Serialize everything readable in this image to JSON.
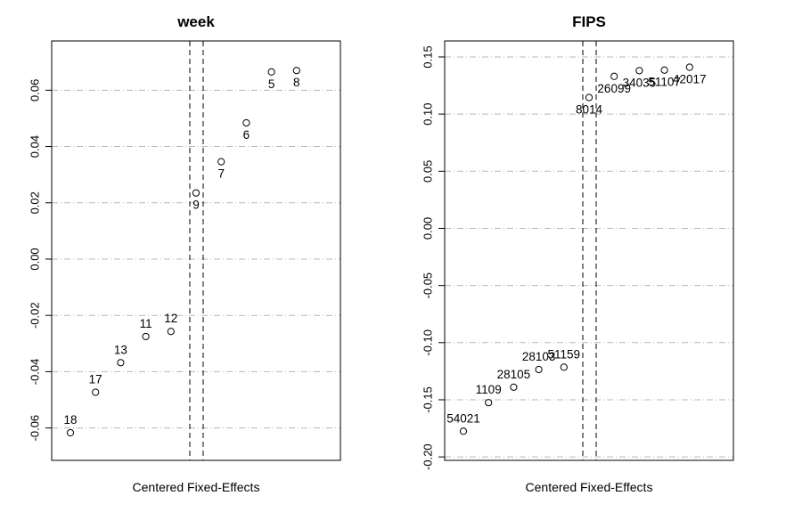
{
  "chart_data": [
    {
      "type": "scatter",
      "title": "week",
      "xlabel": "Centered Fixed-Effects",
      "ylabel": "",
      "ylim": [
        -0.0715,
        0.0775
      ],
      "yticks": [
        -0.06,
        -0.04,
        -0.02,
        0.0,
        0.02,
        0.04,
        0.06
      ],
      "ytick_labels": [
        "-0.06",
        "-0.04",
        "-0.02",
        "0.00",
        "0.02",
        "0.04",
        "0.06"
      ],
      "grid": "horizontal dash-dot at y ticks",
      "split_lines": "two vertical dashed lines in the middle",
      "points": [
        {
          "label": "18",
          "y": -0.0617,
          "label_pos": "above"
        },
        {
          "label": "17",
          "y": -0.0473,
          "label_pos": "above"
        },
        {
          "label": "13",
          "y": -0.0368,
          "label_pos": "above"
        },
        {
          "label": "11",
          "y": -0.0275,
          "label_pos": "above"
        },
        {
          "label": "12",
          "y": -0.0257,
          "label_pos": "above"
        },
        {
          "label": "9",
          "y": 0.0235,
          "label_pos": "below"
        },
        {
          "label": "7",
          "y": 0.0346,
          "label_pos": "below"
        },
        {
          "label": "6",
          "y": 0.0484,
          "label_pos": "below"
        },
        {
          "label": "5",
          "y": 0.0665,
          "label_pos": "below"
        },
        {
          "label": "8",
          "y": 0.067,
          "label_pos": "below"
        }
      ]
    },
    {
      "type": "scatter",
      "title": "FIPS",
      "xlabel": "Centered Fixed-Effects",
      "ylabel": "",
      "ylim": [
        -0.203,
        0.164
      ],
      "yticks": [
        -0.2,
        -0.15,
        -0.1,
        -0.05,
        0.0,
        0.05,
        0.1,
        0.15
      ],
      "ytick_labels": [
        "-0.20",
        "-0.15",
        "-0.10",
        "-0.05",
        "0.00",
        "0.05",
        "0.10",
        "0.15"
      ],
      "grid": "horizontal dash-dot at y ticks",
      "split_lines": "two vertical dashed lines in the middle",
      "points": [
        {
          "label": "54021",
          "y": -0.1775,
          "label_pos": "above"
        },
        {
          "label": "1109",
          "y": -0.1525,
          "label_pos": "above"
        },
        {
          "label": "28105",
          "y": -0.139,
          "label_pos": "above"
        },
        {
          "label": "28103",
          "y": -0.1235,
          "label_pos": "above"
        },
        {
          "label": "51159",
          "y": -0.1215,
          "label_pos": "above"
        },
        {
          "label": "8014",
          "y": 0.1145,
          "label_pos": "below"
        },
        {
          "label": "26099",
          "y": 0.133,
          "label_pos": "below"
        },
        {
          "label": "34035",
          "y": 0.138,
          "label_pos": "below"
        },
        {
          "label": "51107",
          "y": 0.1385,
          "label_pos": "below"
        },
        {
          "label": "42017",
          "y": 0.141,
          "label_pos": "below"
        }
      ]
    }
  ]
}
